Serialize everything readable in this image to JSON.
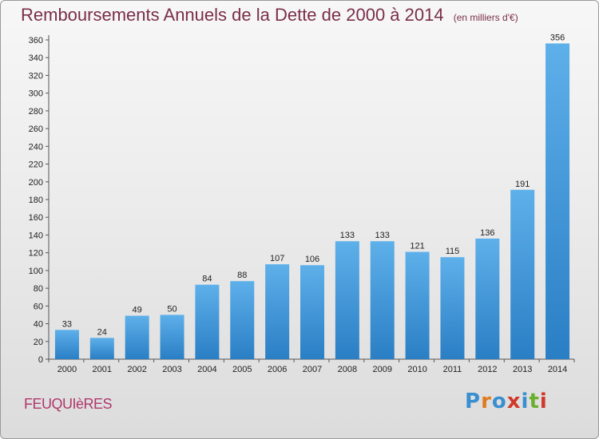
{
  "title": "Remboursements Annuels de la Dette de 2000 à 2014",
  "unit_note": "(en milliers d'€)",
  "place_name": "FEUQUIèRES",
  "logo": {
    "text": "Proxiti",
    "letter_colors": [
      "#3a8fd0",
      "#e07a1f",
      "#3a8fd0",
      "#d0382a",
      "#3a8fd0",
      "#6ab02e",
      "#d0382a"
    ]
  },
  "colors": {
    "bar_top": "#5eb0ea",
    "bar_bottom": "#2a7ec4"
  },
  "chart_data": {
    "type": "bar",
    "categories": [
      "2000",
      "2001",
      "2002",
      "2003",
      "2004",
      "2005",
      "2006",
      "2007",
      "2008",
      "2009",
      "2010",
      "2011",
      "2012",
      "2013",
      "2014"
    ],
    "values": [
      33,
      24,
      49,
      50,
      84,
      88,
      107,
      106,
      133,
      133,
      121,
      115,
      136,
      191,
      356
    ],
    "title": "Remboursements Annuels de la Dette de 2000 à 2014",
    "ylim": [
      0,
      360
    ],
    "yticks": [
      0,
      20,
      40,
      60,
      80,
      100,
      120,
      140,
      160,
      180,
      200,
      220,
      240,
      260,
      280,
      300,
      320,
      340,
      360
    ],
    "grid": false
  }
}
